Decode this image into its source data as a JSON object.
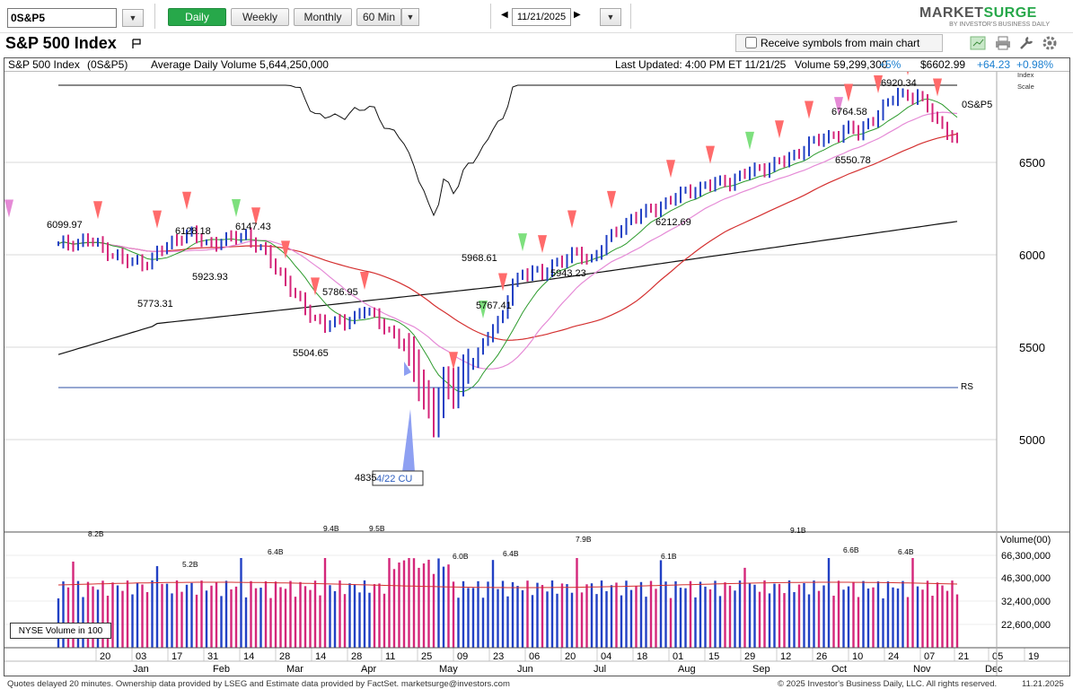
{
  "toolbar": {
    "symbol": "0S&P5",
    "periods": [
      {
        "label": "Daily",
        "active": true
      },
      {
        "label": "Weekly",
        "active": false
      },
      {
        "label": "Monthly",
        "active": false
      },
      {
        "label": "60 Min",
        "active": false
      }
    ],
    "date": "11/21/2025",
    "logo_market": "MARKET",
    "logo_surge": "SURGE",
    "logo_sub": "BY INVESTOR'S BUSINESS DAILY"
  },
  "header": {
    "title": "S&P 500 Index",
    "receive_label": "Receive symbols from main chart",
    "receive_checked": false
  },
  "infobar": {
    "name": "S&P 500 Index",
    "symbol": "(0S&P5)",
    "avg_volume": "Average Daily Volume 5,644,250,000",
    "last_updated": "Last Updated:  4:00 PM ET 11/21/25",
    "volume": "Volume 59,299,300",
    "volume_pct": "+5%",
    "price": "$6602.99",
    "change": "+64.23",
    "change_pct": "+0.98%",
    "index_scale": "Index",
    "index_scale2": "Scale"
  },
  "footer": {
    "left": "Quotes delayed 20 minutes. Ownership data provided by LSEG and Estimate data provided by FactSet. marketsurge@investors.com",
    "right": "© 2025 Investor's Business Daily, LLC. All rights reserved.",
    "date": "11.21.2025"
  },
  "chart_data": {
    "type": "ohlc",
    "title": "S&P 500 Index",
    "y_axis": {
      "ticks": [
        5000,
        5500,
        6000,
        6500
      ],
      "labels": [
        "5000",
        "5500",
        "6000",
        "6500"
      ],
      "range": [
        4700,
        7030
      ]
    },
    "volume_axis": {
      "label": "Volume(00)",
      "ticks": [
        "66,300,000",
        "46,300,000",
        "32,400,000",
        "22,600,000"
      ]
    },
    "volume_legend": "NYSE Volume in 100",
    "x_axis": {
      "day_labels": [
        "20",
        "03",
        "17",
        "31",
        "14",
        "28",
        "14",
        "28",
        "11",
        "25",
        "09",
        "23",
        "06",
        "20",
        "04",
        "18",
        "01",
        "15",
        "29",
        "12",
        "26",
        "10",
        "24",
        "07",
        "21",
        "05",
        "19"
      ],
      "month_labels": [
        "Jan",
        "Feb",
        "Mar",
        "Apr",
        "May",
        "Jun",
        "Jul",
        "Aug",
        "Sep",
        "Oct",
        "Nov",
        "Dec"
      ]
    },
    "series_label": "0S&P5",
    "rs_label": "RS",
    "price_annotations": [
      "6099.97",
      "6128.18",
      "6147.43",
      "5773.31",
      "5923.93",
      "5786.95",
      "5504.65",
      "4835",
      "5968.61",
      "5767.41",
      "5943.23",
      "6212.69",
      "6764.58",
      "6550.78",
      "6920.34"
    ],
    "pattern_label": "4/22 CU",
    "volume_annotations": [
      "8.2B",
      "5.2B",
      "6.4B",
      "9.4B",
      "9.5B",
      "6.0B",
      "6.4B",
      "7.9B",
      "6.1B",
      "9.1B",
      "6.6B",
      "6.4B"
    ],
    "close_path": [
      [
        0,
        6050
      ],
      [
        6,
        6080
      ],
      [
        10,
        6020
      ],
      [
        14,
        5960
      ],
      [
        18,
        5960
      ],
      [
        22,
        6050
      ],
      [
        26,
        6120
      ],
      [
        30,
        6060
      ],
      [
        34,
        6080
      ],
      [
        38,
        6110
      ],
      [
        42,
        6000
      ],
      [
        46,
        5860
      ],
      [
        50,
        5700
      ],
      [
        54,
        5620
      ],
      [
        58,
        5640
      ],
      [
        62,
        5700
      ],
      [
        66,
        5620
      ],
      [
        70,
        5500
      ],
      [
        72,
        5400
      ],
      [
        74,
        5250
      ],
      [
        76,
        5100
      ],
      [
        78,
        5300
      ],
      [
        80,
        5280
      ],
      [
        82,
        5370
      ],
      [
        84,
        5420
      ],
      [
        86,
        5520
      ],
      [
        88,
        5620
      ],
      [
        90,
        5660
      ],
      [
        92,
        5850
      ],
      [
        94,
        5900
      ],
      [
        96,
        5920
      ],
      [
        98,
        5880
      ],
      [
        100,
        5950
      ],
      [
        104,
        6000
      ],
      [
        108,
        5980
      ],
      [
        112,
        6100
      ],
      [
        116,
        6200
      ],
      [
        120,
        6240
      ],
      [
        124,
        6300
      ],
      [
        128,
        6350
      ],
      [
        132,
        6380
      ],
      [
        136,
        6400
      ],
      [
        140,
        6450
      ],
      [
        144,
        6480
      ],
      [
        148,
        6520
      ],
      [
        152,
        6600
      ],
      [
        156,
        6640
      ],
      [
        160,
        6680
      ],
      [
        162,
        6660
      ],
      [
        164,
        6720
      ],
      [
        166,
        6760
      ],
      [
        168,
        6820
      ],
      [
        170,
        6880
      ],
      [
        172,
        6860
      ],
      [
        174,
        6850
      ],
      [
        176,
        6800
      ],
      [
        178,
        6730
      ],
      [
        180,
        6660
      ],
      [
        182,
        6602
      ]
    ]
  }
}
